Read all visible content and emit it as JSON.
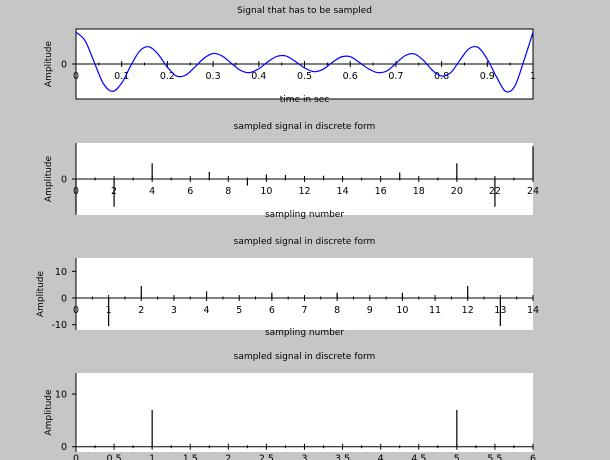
{
  "chart_data": [
    {
      "type": "line",
      "title": "Signal that has to be sampled",
      "xlabel": "time in sec",
      "ylabel": "Amplitude",
      "xlim": [
        0,
        1
      ],
      "ylim": [
        -1.1,
        1.1
      ],
      "xticks": [
        "0",
        "0.1",
        "0.2",
        "0.3",
        "0.4",
        "0.5",
        "0.6",
        "0.7",
        "0.8",
        "0.9",
        "1"
      ],
      "yticks": [
        "0"
      ],
      "zero_line": true,
      "line_color": "#0000ff",
      "series": [
        {
          "x": [
            0,
            0.02,
            0.04,
            0.06,
            0.08,
            0.1,
            0.12,
            0.14,
            0.16,
            0.18,
            0.2,
            0.22,
            0.24,
            0.26,
            0.28,
            0.3,
            0.32,
            0.34,
            0.36,
            0.38,
            0.4,
            0.42,
            0.44,
            0.46,
            0.48,
            0.5,
            0.52,
            0.54,
            0.56,
            0.58,
            0.6,
            0.62,
            0.64,
            0.66,
            0.68,
            0.7,
            0.72,
            0.74,
            0.76,
            0.78,
            0.8,
            0.82,
            0.84,
            0.86,
            0.88,
            0.9,
            0.92,
            0.94,
            0.96,
            0.98,
            1.0
          ],
          "values": [
            1.0,
            0.73,
            0.05,
            -0.62,
            -0.86,
            -0.6,
            -0.05,
            0.42,
            0.54,
            0.3,
            -0.1,
            -0.38,
            -0.35,
            -0.1,
            0.18,
            0.33,
            0.25,
            0.02,
            -0.2,
            -0.27,
            -0.15,
            0.07,
            0.24,
            0.25,
            0.08,
            -0.12,
            -0.24,
            -0.17,
            0.04,
            0.22,
            0.23,
            0.05,
            -0.15,
            -0.27,
            -0.22,
            0.02,
            0.26,
            0.32,
            0.12,
            -0.2,
            -0.38,
            -0.27,
            0.12,
            0.48,
            0.52,
            0.15,
            -0.4,
            -0.86,
            -0.7,
            0.1,
            1.0
          ]
        }
      ]
    },
    {
      "type": "stem",
      "title": "sampled signal in discrete form",
      "xlabel": "sampling number",
      "ylabel": "Amplitude",
      "xlim": [
        0,
        24
      ],
      "ylim": [
        -1.1,
        1.1
      ],
      "xticks": [
        "0",
        "2",
        "4",
        "6",
        "8",
        "10",
        "12",
        "14",
        "16",
        "18",
        "20",
        "22",
        "24"
      ],
      "yticks": [
        "0"
      ],
      "x": [
        0,
        1,
        2,
        3,
        4,
        5,
        6,
        7,
        8,
        9,
        10,
        11,
        12,
        13,
        14,
        15,
        16,
        17,
        18,
        19,
        20,
        21,
        22,
        23,
        24
      ],
      "values": [
        -1.0,
        0.0,
        -0.85,
        0.0,
        0.48,
        0.0,
        0.0,
        0.22,
        0.0,
        -0.2,
        0.14,
        0.12,
        0.0,
        0.1,
        0.06,
        0.0,
        0.0,
        0.2,
        0.0,
        0.0,
        0.48,
        0.0,
        -0.85,
        0.0,
        1.0
      ]
    },
    {
      "type": "stem",
      "title": "sampled signal in discrete form",
      "xlabel": "sampling number",
      "ylabel": "Amplitude",
      "xlim": [
        0,
        14
      ],
      "ylim": [
        -12,
        15
      ],
      "xticks": [
        "0",
        "1",
        "2",
        "3",
        "4",
        "5",
        "6",
        "7",
        "8",
        "9",
        "10",
        "11",
        "12",
        "13",
        "14"
      ],
      "yticks": [
        "-10",
        "0",
        "10"
      ],
      "x": [
        0,
        1,
        2,
        3,
        4,
        5,
        6,
        7,
        8,
        9,
        10,
        11,
        12,
        13,
        14
      ],
      "values": [
        0,
        -10.5,
        4.5,
        0,
        2.5,
        0,
        2.0,
        0,
        2.0,
        0,
        2.0,
        0,
        4.5,
        -10.5,
        0
      ]
    },
    {
      "type": "stem",
      "title": "sampled signal in discrete form",
      "xlabel": "",
      "ylabel": "Amplitude",
      "xlim": [
        0,
        6
      ],
      "ylim": [
        -1,
        14
      ],
      "xticks": [
        "0",
        "0.5",
        "1",
        "1.5",
        "2",
        "2.5",
        "3",
        "3.5",
        "4",
        "4.5",
        "5",
        "5.5",
        "6"
      ],
      "yticks": [
        "0",
        "10"
      ],
      "x": [
        0,
        1,
        2,
        3,
        4,
        5,
        6
      ],
      "values": [
        0,
        7,
        0,
        0,
        0,
        7,
        0
      ]
    }
  ]
}
